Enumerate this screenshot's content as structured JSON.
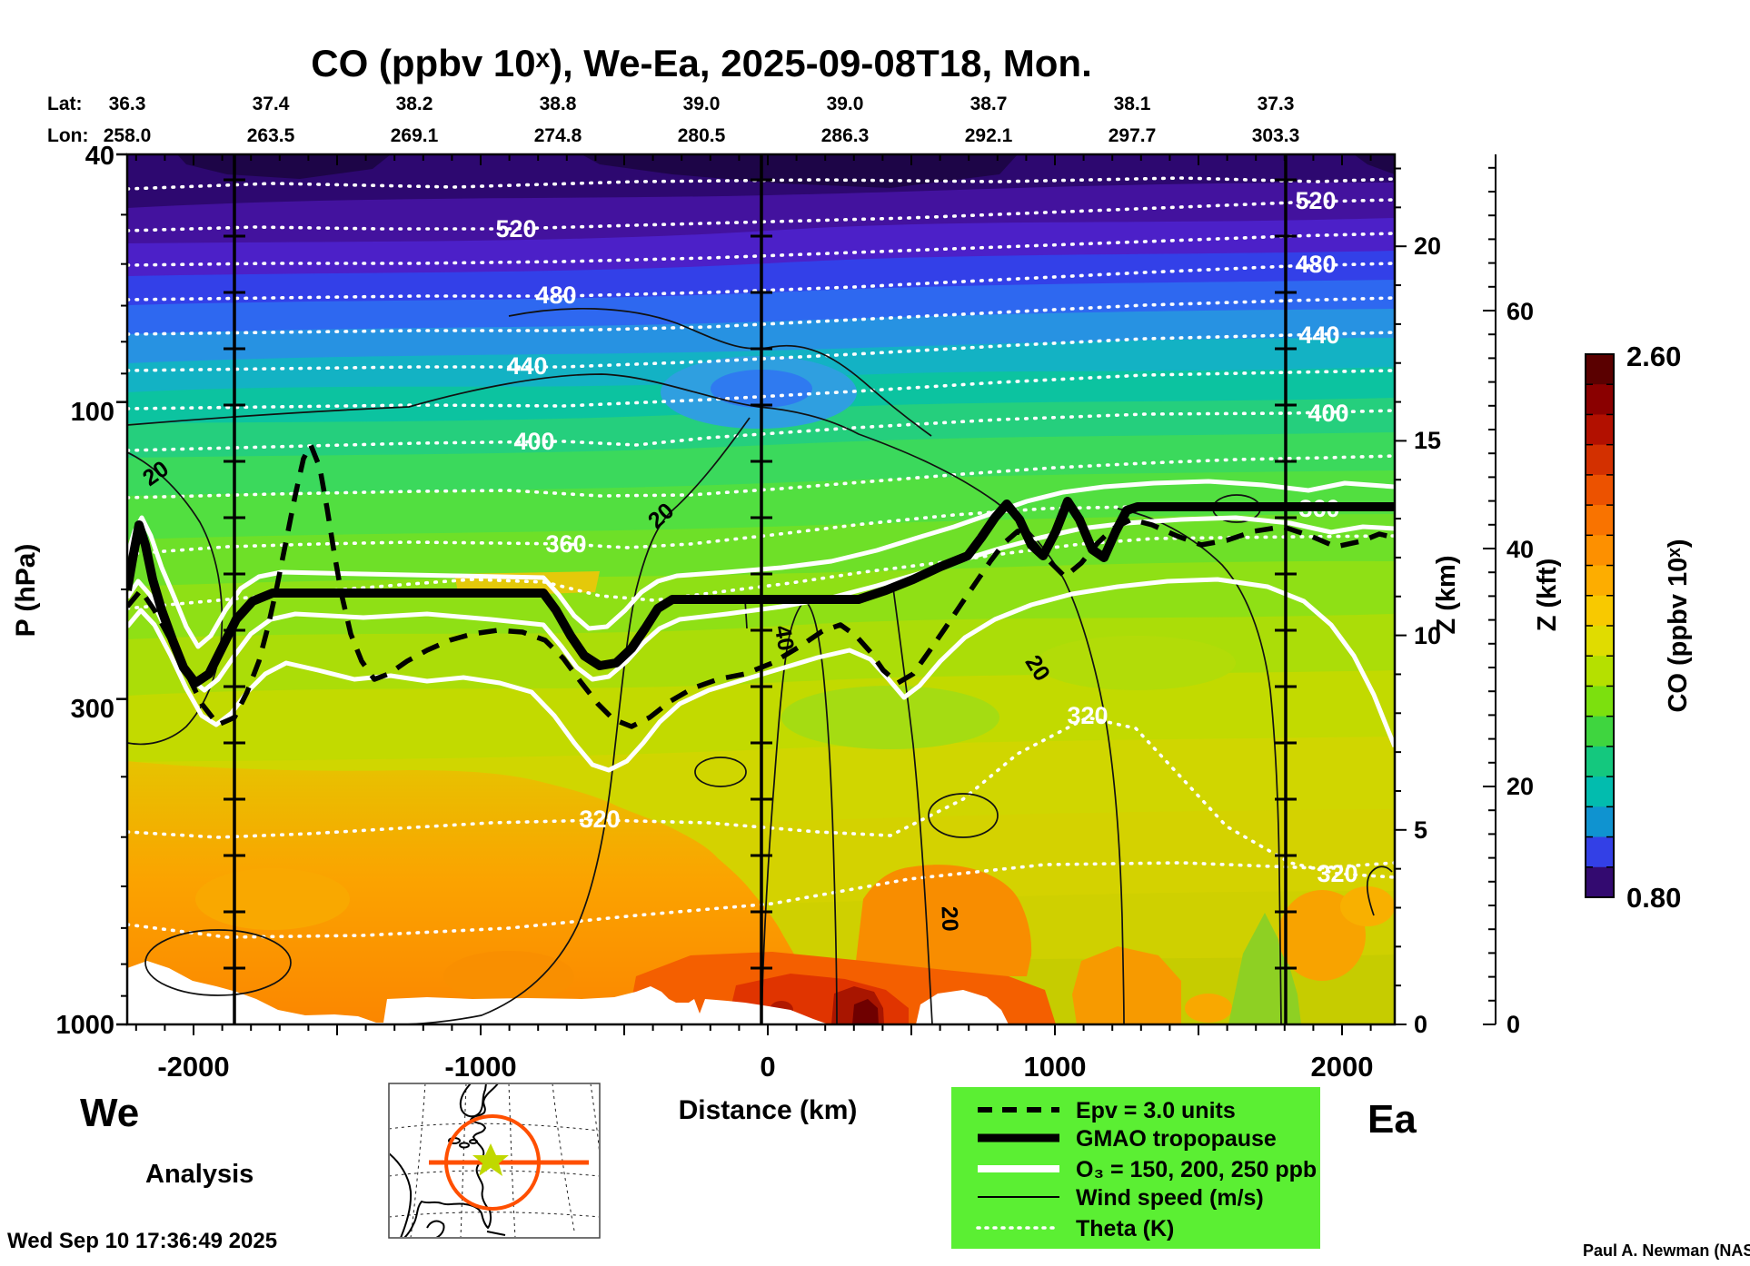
{
  "title": "CO (ppbv 10ˣ), We-Ea, 2025-09-08T18, Mon.",
  "track": {
    "lat_label": "Lat:",
    "lon_label": "Lon:",
    "lat": [
      "36.3",
      "37.4",
      "38.2",
      "38.8",
      "39.0",
      "39.0",
      "38.7",
      "38.1",
      "37.3"
    ],
    "lon": [
      "258.0",
      "263.5",
      "269.1",
      "274.8",
      "280.5",
      "286.3",
      "292.1",
      "297.7",
      "303.3"
    ]
  },
  "axes": {
    "pressure": {
      "label": "P (hPa)",
      "ticks": [
        "40",
        "100",
        "300",
        "1000"
      ]
    },
    "distance": {
      "label": "Distance (km)",
      "ticks": [
        "-2000",
        "-1000",
        "0",
        "1000",
        "2000"
      ]
    },
    "z_km": {
      "label": "Z (km)",
      "ticks": [
        "20",
        "15",
        "10",
        "5",
        "0"
      ]
    },
    "z_kft": {
      "label": "Z (kft)",
      "ticks": [
        "60",
        "40",
        "20",
        "0"
      ]
    }
  },
  "endpoints": {
    "west": "We",
    "east": "Ea"
  },
  "analysis_label": "Analysis",
  "timestamp": "Wed Sep 10 17:36:49 2025",
  "credit": "Paul A. Newman (NASA",
  "colorbar": {
    "label": "CO (ppbv 10ˣ)",
    "max": "2.60",
    "min": "0.80",
    "colors": [
      "#5a0000",
      "#8a0000",
      "#b21000",
      "#d33000",
      "#ec5200",
      "#f97300",
      "#fd9000",
      "#fdad00",
      "#f8c900",
      "#e0dc00",
      "#b5e000",
      "#7ce00e",
      "#3fd53f",
      "#14c87e",
      "#02bcae",
      "#0f93d0",
      "#3340e6",
      "#330a70"
    ]
  },
  "legend": {
    "entries": [
      {
        "label": "Epv = 3.0 units"
      },
      {
        "label": "GMAO tropopause"
      },
      {
        "label": "O₃ = 150, 200, 250 ppb"
      },
      {
        "label": "Wind speed (m/s)"
      },
      {
        "label": "Theta (K)"
      }
    ]
  },
  "contour_labels": {
    "theta": {
      "t520": "520",
      "t480": "480",
      "t440": "440",
      "t400": "400",
      "t360": "360",
      "t320": "320"
    },
    "wind": {
      "w20": "20",
      "w40": "40"
    }
  },
  "chart_data": {
    "type": "heatmap",
    "title": "CO (ppbv 10ˣ), We-Ea, 2025-09-08T18, Mon.",
    "xlabel": "Distance (km)",
    "ylabel_left": "P (hPa)",
    "ylabel_right": [
      "Z (km)",
      "Z (kft)"
    ],
    "x_range_km": [
      -2230,
      2180
    ],
    "x_ticks_km": [
      -2000,
      -1000,
      0,
      1000,
      2000
    ],
    "pressure_range_hPa": [
      40,
      1000
    ],
    "pressure_ticks_hPa": [
      40,
      100,
      300,
      1000
    ],
    "pressure_scale": "log",
    "z_km_ticks": [
      0,
      5,
      10,
      15,
      20
    ],
    "z_kft_ticks": [
      0,
      20,
      40,
      60
    ],
    "colorbar": {
      "variable": "CO (ppbv 10ˣ)",
      "min": 0.8,
      "max": 2.6,
      "step": 0.1
    },
    "track_points": {
      "lat": [
        36.3,
        37.4,
        38.2,
        38.8,
        39.0,
        39.0,
        38.7,
        38.1,
        37.3
      ],
      "lon": [
        258.0,
        263.5,
        269.1,
        274.8,
        280.5,
        286.3,
        292.1,
        297.7,
        303.3
      ]
    },
    "waypoint_lines_km": [
      -1860,
      -20,
      1800
    ],
    "contours": {
      "theta_K": {
        "levels": [
          300,
          320,
          340,
          360,
          380,
          400,
          420,
          440,
          460,
          480,
          500,
          520,
          540
        ],
        "style": "white dotted"
      },
      "wind_ms": {
        "levels": [
          20,
          40
        ],
        "style": "thin black solid"
      },
      "o3_ppb": {
        "levels": [
          150,
          200,
          250
        ],
        "style": "thick white solid"
      },
      "epv_units": 3.0,
      "tropopause": "GMAO tropopause (thick black)"
    },
    "tropopause_hPa_vs_km": [
      [
        -2230,
        185
      ],
      [
        -2100,
        300
      ],
      [
        -1900,
        255
      ],
      [
        -1600,
        217
      ],
      [
        -800,
        217
      ],
      [
        -600,
        265
      ],
      [
        -480,
        290
      ],
      [
        -350,
        235
      ],
      [
        -100,
        208
      ],
      [
        150,
        185
      ],
      [
        500,
        160
      ],
      [
        800,
        147
      ],
      [
        950,
        175
      ],
      [
        1150,
        150
      ],
      [
        1250,
        172
      ],
      [
        1350,
        141
      ],
      [
        2180,
        140
      ]
    ],
    "field_summary": "CO analysis cross-section: low CO (10^0.8-10^1.2 ppbv, purple/blue) in stratosphere above tropopause; mid CO (10^1.3-10^1.6, green/yellow) upper troposphere; high CO (10^1.8-10^2.6, orange/red) lower troposphere, maximum near surface around 0 to +300 km."
  }
}
